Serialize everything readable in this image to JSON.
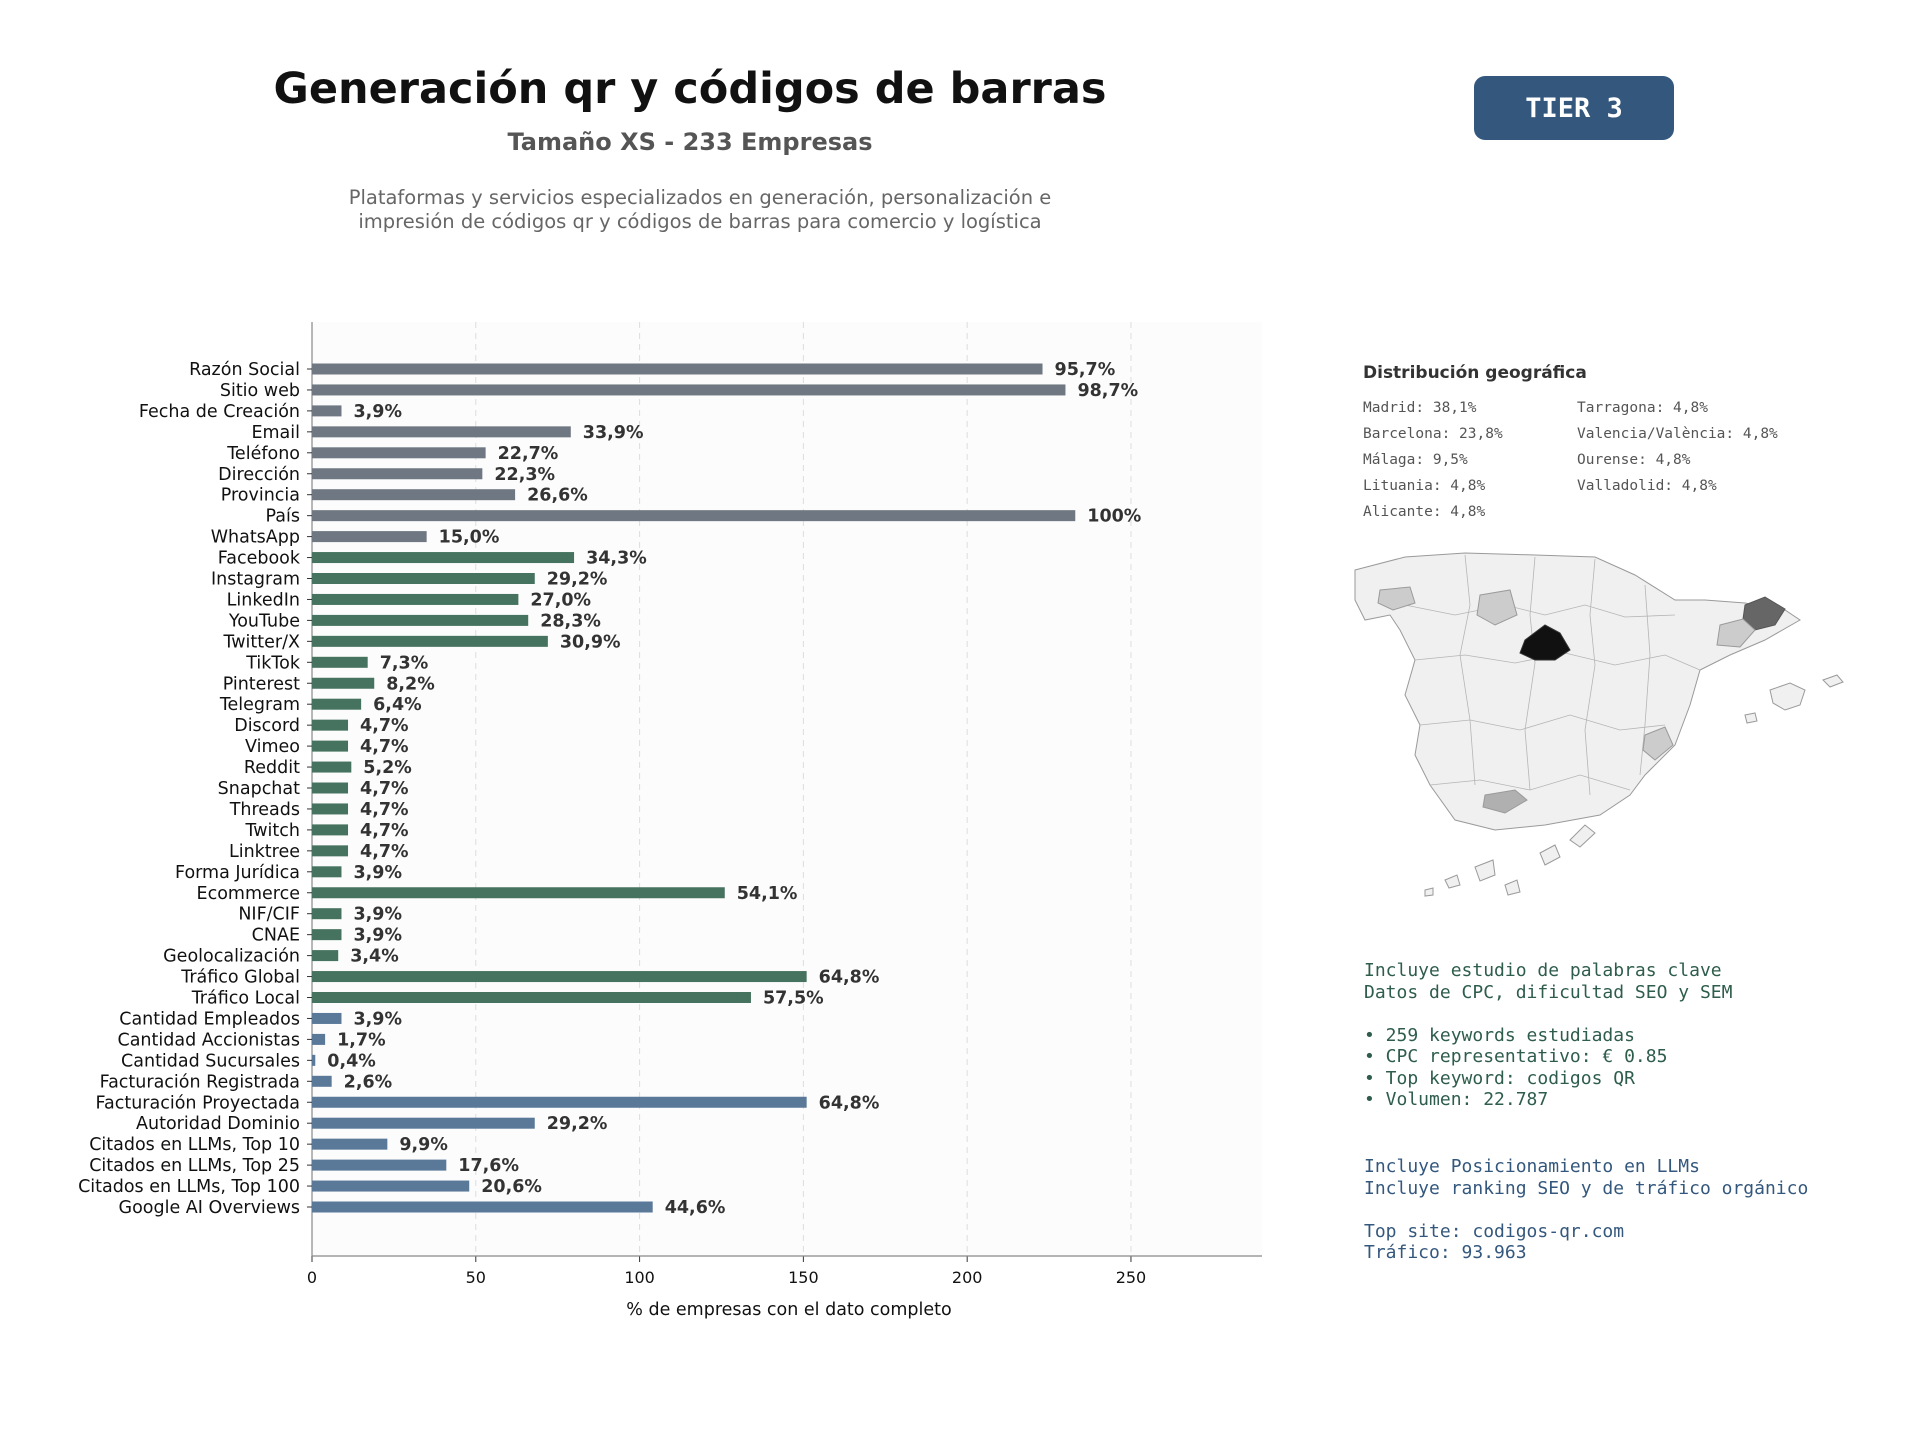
{
  "header": {
    "title": "Generación qr y códigos de barras",
    "subtitle": "Tamaño XS - 233 Empresas",
    "description": "Plataformas y servicios especializados en generación, personalización e impresión de códigos qr y códigos de barras para comercio y logística",
    "tier": "TIER 3"
  },
  "colors": {
    "gray": "#6f7882",
    "green": "#46735f",
    "blue": "#5a7898"
  },
  "chart_data": {
    "type": "bar",
    "orientation": "horizontal",
    "xlabel": "% de empresas con el dato completo",
    "xlim": [
      0,
      290
    ],
    "xticks": [
      0,
      50,
      100,
      150,
      200,
      250
    ],
    "grid": "vertical dashed",
    "categories": [
      "Razón Social",
      "Sitio web",
      "Fecha de Creación",
      "Email",
      "Teléfono",
      "Dirección",
      "Provincia",
      "País",
      "WhatsApp",
      "Facebook",
      "Instagram",
      "LinkedIn",
      "YouTube",
      "Twitter/X",
      "TikTok",
      "Pinterest",
      "Telegram",
      "Discord",
      "Vimeo",
      "Reddit",
      "Snapchat",
      "Threads",
      "Twitch",
      "Linktree",
      "Forma Jurídica",
      "Ecommerce",
      "NIF/CIF",
      "CNAE",
      "Geolocalización",
      "Tráfico Global",
      "Tráfico Local",
      "Cantidad Empleados",
      "Cantidad Accionistas",
      "Cantidad Sucursales",
      "Facturación Registrada",
      "Facturación Proyectada",
      "Autoridad Dominio",
      "Citados en LLMs, Top 10",
      "Citados en LLMs, Top 25",
      "Citados en LLMs, Top 100",
      "Google AI Overviews"
    ],
    "values": [
      223,
      230,
      9,
      79,
      53,
      52,
      62,
      233,
      35,
      80,
      68,
      63,
      66,
      72,
      17,
      19,
      15,
      11,
      11,
      12,
      11,
      11,
      11,
      11,
      9,
      126,
      9,
      9,
      8,
      151,
      134,
      9,
      4,
      1,
      6,
      151,
      68,
      23,
      41,
      48,
      104
    ],
    "labels": [
      "95,7%",
      "98,7%",
      "3,9%",
      "33,9%",
      "22,7%",
      "22,3%",
      "26,6%",
      "100%",
      "15,0%",
      "34,3%",
      "29,2%",
      "27,0%",
      "28,3%",
      "30,9%",
      "7,3%",
      "8,2%",
      "6,4%",
      "4,7%",
      "4,7%",
      "5,2%",
      "4,7%",
      "4,7%",
      "4,7%",
      "4,7%",
      "3,9%",
      "54,1%",
      "3,9%",
      "3,9%",
      "3,4%",
      "64,8%",
      "57,5%",
      "3,9%",
      "1,7%",
      "0,4%",
      "2,6%",
      "64,8%",
      "29,2%",
      "9,9%",
      "17,6%",
      "20,6%",
      "44,6%"
    ],
    "groups": [
      "gray",
      "gray",
      "gray",
      "gray",
      "gray",
      "gray",
      "gray",
      "gray",
      "gray",
      "green",
      "green",
      "green",
      "green",
      "green",
      "green",
      "green",
      "green",
      "green",
      "green",
      "green",
      "green",
      "green",
      "green",
      "green",
      "green",
      "green",
      "green",
      "green",
      "green",
      "green",
      "green",
      "blue",
      "blue",
      "blue",
      "blue",
      "blue",
      "blue",
      "blue",
      "blue",
      "blue",
      "blue"
    ]
  },
  "geo": {
    "title": "Distribución geográfica",
    "items": [
      "Madrid: 38,1%",
      "Tarragona: 4,8%",
      "Barcelona: 23,8%",
      "Valencia/València: 4,8%",
      "Málaga: 9,5%",
      "Ourense: 4,8%",
      "Lituania: 4,8%",
      "Valladolid: 4,8%",
      "Alicante: 4,8%"
    ]
  },
  "map": {
    "fill_default": "#f0f0f0",
    "stroke": "#9a9a9a",
    "madrid": "#111111",
    "barcelona": "#666666",
    "malaga": "#b0b0b0",
    "others": "#cccccc"
  },
  "seo": {
    "lines": [
      "Incluye estudio de palabras clave",
      "Datos de CPC, dificultad SEO y SEM",
      "",
      "• 259 keywords estudiadas",
      "• CPC representativo: € 0.85",
      "• Top keyword: codigos QR",
      "• Volumen: 22.787"
    ]
  },
  "llm": {
    "lines": [
      "Incluye Posicionamiento en LLMs",
      "Incluye ranking SEO y de tráfico orgánico",
      "",
      "Top site: codigos-qr.com",
      "Tráfico: 93.963"
    ]
  }
}
